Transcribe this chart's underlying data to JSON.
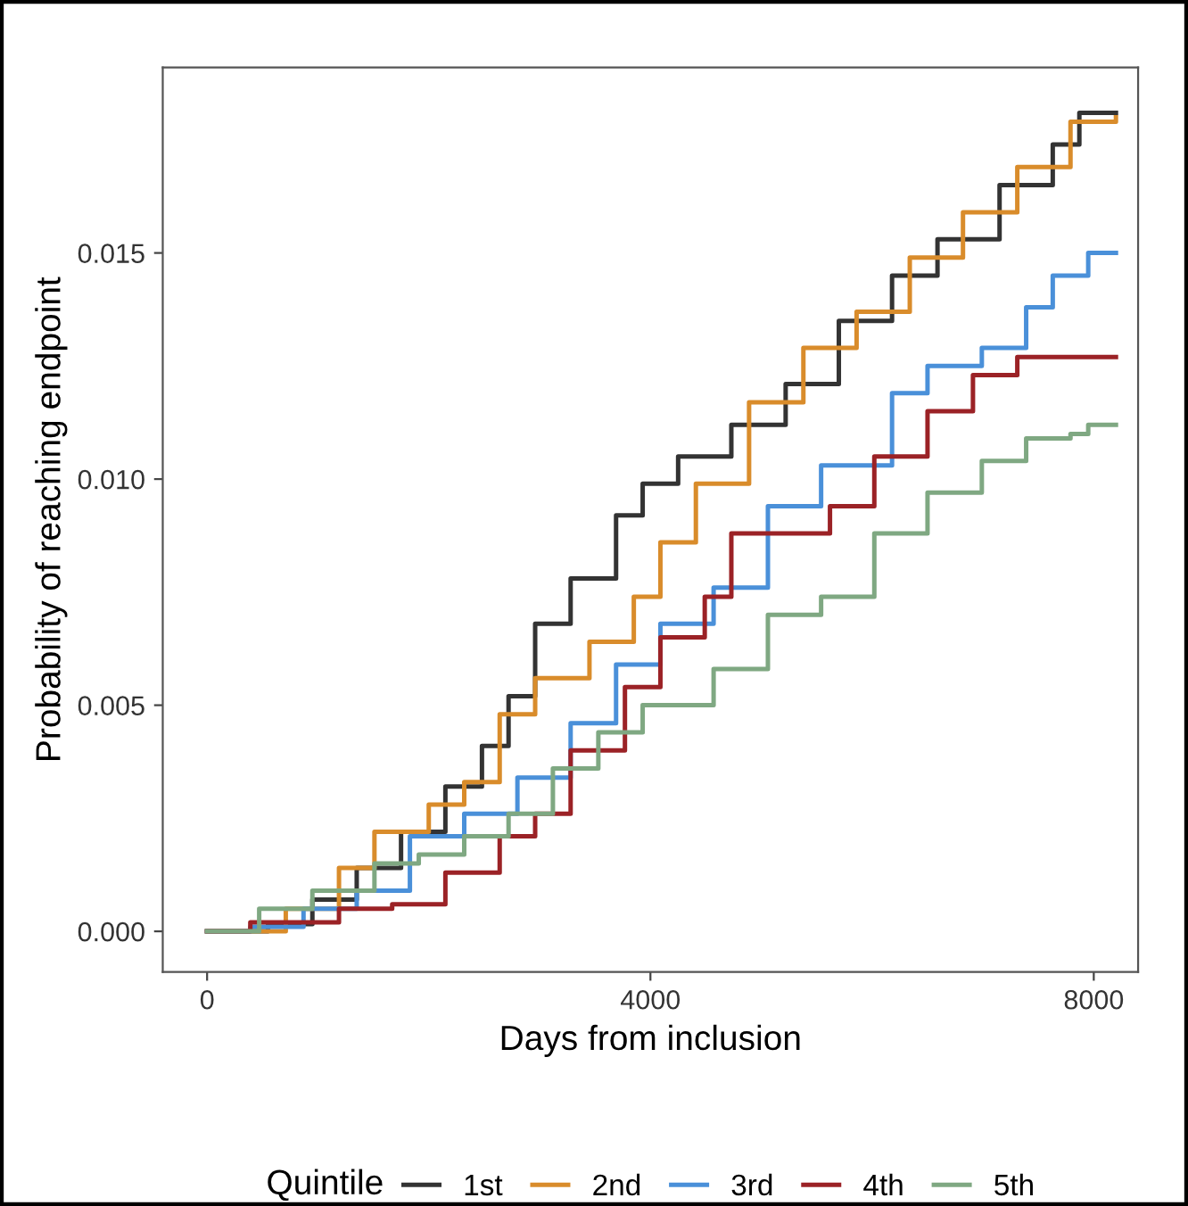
{
  "chart_data": {
    "type": "step",
    "xlabel": "Days from inclusion",
    "ylabel": "Probability of reaching endpoint",
    "legend_title": "Quintile",
    "legend": "bottom",
    "grid": false,
    "xlim": [
      -400,
      8400
    ],
    "ylim": [
      -0.0009,
      0.0191
    ],
    "xticks": [
      0,
      4000,
      8000
    ],
    "yticks": [
      {
        "value": 0,
        "label": "0.000"
      },
      {
        "value": 0.005,
        "label": "0.005"
      },
      {
        "value": 0.01,
        "label": "0.010"
      },
      {
        "value": 0.015,
        "label": "0.015"
      }
    ],
    "series": [
      {
        "name": "1st",
        "color": "#333333",
        "x": [
          0,
          550,
          950,
          1350,
          1750,
          2150,
          2480,
          2720,
          2960,
          3280,
          3690,
          3930,
          4250,
          4730,
          5220,
          5700,
          6180,
          6590,
          7150,
          7630,
          7870,
          8200
        ],
        "values": [
          0,
          0.00016,
          0.0007,
          0.0014,
          0.0022,
          0.0032,
          0.0041,
          0.0052,
          0.0068,
          0.0078,
          0.0092,
          0.0099,
          0.0105,
          0.0112,
          0.0121,
          0.0135,
          0.0145,
          0.0153,
          0.0165,
          0.0174,
          0.0181,
          0.0181
        ]
      },
      {
        "name": "2nd",
        "color": "#d98c2b",
        "x": [
          0,
          710,
          1190,
          1510,
          2000,
          2320,
          2640,
          2960,
          3450,
          3850,
          4090,
          4410,
          4890,
          5380,
          5860,
          6340,
          6820,
          7310,
          7790,
          8200
        ],
        "values": [
          0,
          0.0005,
          0.0014,
          0.0022,
          0.0028,
          0.0033,
          0.0048,
          0.0056,
          0.0064,
          0.0074,
          0.0086,
          0.0099,
          0.0117,
          0.0129,
          0.0137,
          0.0149,
          0.0159,
          0.0169,
          0.0179,
          0.018
        ]
      },
      {
        "name": "3rd",
        "color": "#4a90d9",
        "x": [
          0,
          390,
          870,
          1350,
          1830,
          2320,
          2800,
          3280,
          3690,
          4090,
          4570,
          5060,
          5540,
          6180,
          6500,
          6990,
          7390,
          7630,
          7950,
          8200
        ],
        "values": [
          0,
          0.0001,
          0.0005,
          0.0009,
          0.0021,
          0.0026,
          0.0034,
          0.0046,
          0.0059,
          0.0068,
          0.0076,
          0.0094,
          0.0103,
          0.0119,
          0.0125,
          0.0129,
          0.0138,
          0.0145,
          0.015,
          0.015
        ]
      },
      {
        "name": "4th",
        "color": "#9b2226",
        "x": [
          0,
          390,
          1190,
          1670,
          2150,
          2640,
          2960,
          3280,
          3770,
          4090,
          4490,
          4730,
          5220,
          5620,
          6020,
          6500,
          6910,
          7310,
          7550,
          8200
        ],
        "values": [
          0,
          0.0002,
          0.0005,
          0.0006,
          0.0013,
          0.0021,
          0.0026,
          0.004,
          0.0054,
          0.0065,
          0.0074,
          0.0088,
          0.0088,
          0.0094,
          0.0105,
          0.0115,
          0.0123,
          0.0127,
          0.0127,
          0.0127
        ]
      },
      {
        "name": "5th",
        "color": "#7fa882",
        "x": [
          0,
          470,
          950,
          1510,
          1910,
          2320,
          2720,
          3120,
          3530,
          3930,
          4570,
          5060,
          5540,
          6020,
          6500,
          6990,
          7390,
          7790,
          7950,
          8200
        ],
        "values": [
          0,
          0.0005,
          0.0009,
          0.0015,
          0.0017,
          0.0021,
          0.0026,
          0.0036,
          0.0044,
          0.005,
          0.0058,
          0.007,
          0.0074,
          0.0088,
          0.0097,
          0.0104,
          0.0109,
          0.011,
          0.0112,
          0.0112
        ]
      }
    ]
  }
}
